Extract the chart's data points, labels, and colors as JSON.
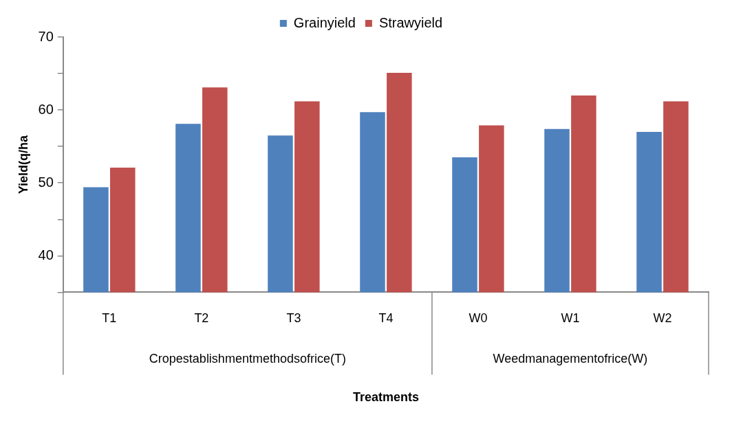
{
  "chart_data": {
    "type": "bar",
    "ylabel": "Yield(q/ha",
    "categories": [
      "T1",
      "T2",
      "T3",
      "T4",
      "W0",
      "W1",
      "W2"
    ],
    "series": [
      {
        "name": "Grainyield",
        "color": "#4f81bd",
        "values": [
          49.4,
          58.1,
          56.5,
          59.7,
          53.5,
          57.4,
          57.0
        ]
      },
      {
        "name": "Strawyield",
        "color": "#c0504d",
        "values": [
          52.1,
          63.1,
          61.2,
          65.1,
          57.9,
          62.0,
          61.2
        ]
      }
    ],
    "ylim": [
      35,
      70
    ],
    "yticks": [
      {
        "value": 35,
        "label": null
      },
      40,
      {
        "value": 45,
        "label": null
      },
      50,
      {
        "value": 55,
        "label": null
      },
      60,
      {
        "value": 65,
        "label": null
      },
      70
    ],
    "grid": false,
    "legend": "top",
    "annotations": [
      "Cropestablishmentmethodsofrice(T)",
      "Weedmanagementofrice(W)",
      "Treatments"
    ]
  }
}
